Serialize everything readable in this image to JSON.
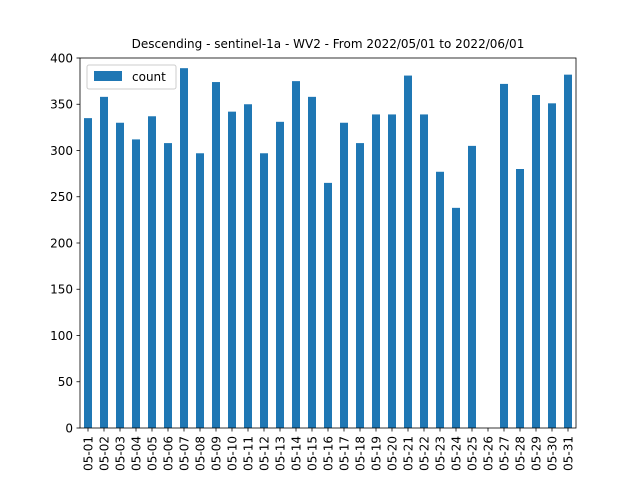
{
  "chart_data": {
    "type": "bar",
    "title": "Descending - sentinel-1a - WV2 - From 2022/05/01 to 2022/06/01",
    "xlabel": "",
    "ylabel": "",
    "ylim": [
      0,
      400
    ],
    "yticks": [
      0,
      50,
      100,
      150,
      200,
      250,
      300,
      350,
      400
    ],
    "grid": false,
    "legend": "top-left",
    "categories": [
      "05-01",
      "05-02",
      "05-03",
      "05-04",
      "05-05",
      "05-06",
      "05-07",
      "05-08",
      "05-09",
      "05-10",
      "05-11",
      "05-12",
      "05-13",
      "05-14",
      "05-15",
      "05-16",
      "05-17",
      "05-18",
      "05-19",
      "05-20",
      "05-21",
      "05-22",
      "05-23",
      "05-24",
      "05-25",
      "05-26",
      "05-27",
      "05-28",
      "05-29",
      "05-30",
      "05-31"
    ],
    "series": [
      {
        "name": "count",
        "color": "#1f77b4",
        "values": [
          335,
          358,
          330,
          312,
          337,
          308,
          389,
          297,
          374,
          342,
          350,
          297,
          331,
          375,
          358,
          265,
          330,
          308,
          339,
          339,
          381,
          339,
          277,
          238,
          305,
          0,
          372,
          280,
          360,
          351,
          382
        ]
      }
    ]
  }
}
